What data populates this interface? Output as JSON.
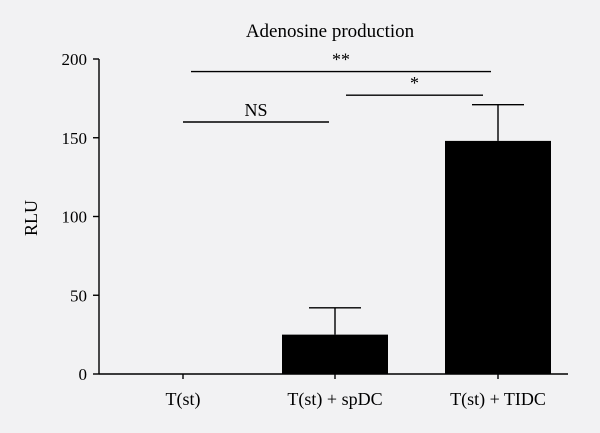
{
  "chart_data": {
    "type": "bar",
    "title": "Adenosine production",
    "xlabel": "",
    "ylabel": "RLU",
    "ylim": [
      0,
      200
    ],
    "yticks": [
      0,
      50,
      100,
      150,
      200
    ],
    "categories": [
      "T(st)",
      "T(st) + spDC",
      "T(st) + TIDC"
    ],
    "values": [
      0,
      25,
      148
    ],
    "errors": [
      0,
      17,
      23
    ],
    "grid": false,
    "bar_color": "#000000",
    "annotations": [
      {
        "label": "NS",
        "from": 0,
        "to": 1,
        "y": 160
      },
      {
        "label": "*",
        "from": 1,
        "to": 2,
        "y": 177
      },
      {
        "label": "**",
        "from": 0,
        "to": 2,
        "y": 192
      }
    ]
  }
}
